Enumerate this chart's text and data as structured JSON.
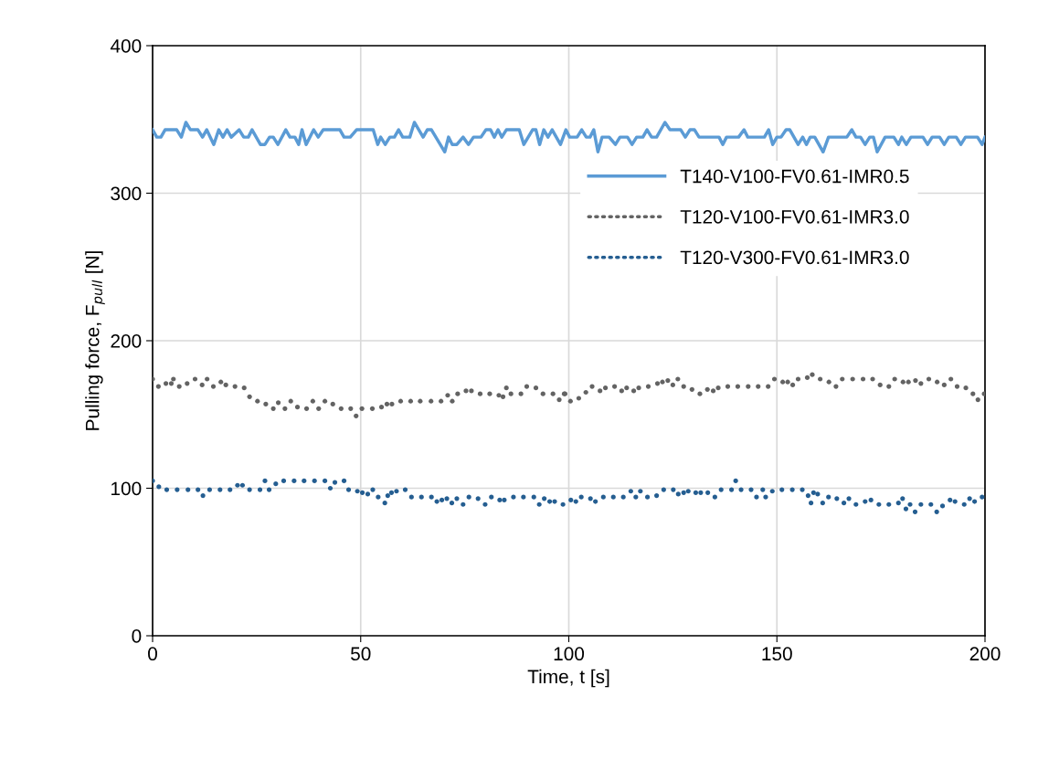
{
  "chart_data": {
    "type": "line",
    "xlabel": "Time, t [s]",
    "ylabel": "Pulling force, F$_{pull}$ [N]",
    "xlim": [
      0,
      200
    ],
    "xticks": [
      0,
      50,
      100,
      150,
      200
    ],
    "ylim": [
      0,
      400
    ],
    "yticks": [
      0,
      100,
      200,
      300,
      400
    ],
    "grid": true,
    "legend": "top right",
    "series": [
      {
        "name": "T140-V100-FV0.61-IMR0.5",
        "line_style": "solid",
        "color": "#5b9bd5",
        "x": [
          0,
          1,
          2,
          3,
          5.8,
          6.9,
          8,
          9.1,
          10.9,
          12,
          13,
          14.7,
          15.9,
          16.9,
          17.9,
          18.9,
          20.8,
          21.9,
          23,
          23.9,
          25.9,
          27,
          28.1,
          29,
          30.1,
          32,
          33,
          34.2,
          35.1,
          35.9,
          36.9,
          38.7,
          39.8,
          41,
          45,
          46,
          47.5,
          49,
          53,
          54.1,
          54.8,
          55.9,
          57,
          58.1,
          59.1,
          60.1,
          61.8,
          62.9,
          65,
          66,
          67,
          70.2,
          71.1,
          72,
          73.1,
          74.6,
          75.9,
          77.1,
          78.9,
          80.1,
          81.2,
          82.1,
          83,
          83.9,
          85,
          88.1,
          89.2,
          91.3,
          92.1,
          93,
          94,
          95,
          96,
          98,
          99.3,
          100.2,
          102,
          103.1,
          104.2,
          105.1,
          106,
          107,
          108,
          109.7,
          111.2,
          112.3,
          114.1,
          115.2,
          116.3,
          117.8,
          118.8,
          119.9,
          121.1,
          123.1,
          124.3,
          126.9,
          128,
          129.1,
          130.2,
          131.3,
          136.1,
          137,
          137.9,
          140.8,
          142.1,
          143,
          147,
          148,
          149,
          150,
          151,
          152.2,
          153.1,
          155.1,
          156.2,
          157.1,
          158,
          159.1,
          161.1,
          162.4,
          166.8,
          168,
          169,
          170.1,
          171.2,
          172.3,
          173.2,
          174.1,
          176,
          178.1,
          179.2,
          180,
          181.1,
          182.2,
          185.1,
          186.2,
          187.3,
          189.1,
          190.2,
          191.3,
          193.1,
          194.2,
          195.3,
          198.2,
          199.3,
          200
        ],
        "values": [
          343,
          338,
          338,
          343,
          343,
          338,
          348,
          343,
          343,
          338,
          343,
          333,
          343,
          338,
          343,
          338,
          343,
          338,
          338,
          343,
          333,
          333,
          338,
          338,
          333,
          343,
          338,
          338,
          333,
          343,
          333,
          343,
          338,
          343,
          343,
          338,
          338,
          343,
          343,
          333,
          338,
          333,
          338,
          338,
          343,
          338,
          338,
          348,
          338,
          343,
          343,
          328,
          338,
          333,
          333,
          338,
          333,
          338,
          338,
          343,
          343,
          338,
          343,
          338,
          343,
          343,
          333,
          343,
          343,
          333,
          343,
          338,
          343,
          333,
          343,
          338,
          338,
          343,
          338,
          338,
          343,
          328,
          338,
          338,
          333,
          338,
          338,
          333,
          338,
          338,
          343,
          338,
          338,
          348,
          343,
          343,
          338,
          343,
          343,
          338,
          338,
          333,
          338,
          338,
          343,
          338,
          338,
          343,
          333,
          338,
          338,
          343,
          343,
          333,
          338,
          333,
          338,
          338,
          328,
          338,
          338,
          343,
          338,
          338,
          333,
          338,
          338,
          328,
          338,
          338,
          333,
          338,
          333,
          338,
          338,
          333,
          338,
          338,
          333,
          338,
          338,
          333,
          338,
          338,
          333,
          338
        ]
      },
      {
        "name": "T120-V100-FV0.61-IMR3.0",
        "type": "scatter",
        "marker": "circle",
        "color": "#636363",
        "x": [
          0,
          1.4,
          3.2,
          4.5,
          5,
          6.4,
          8.3,
          10.2,
          11.9,
          13.1,
          14.6,
          16.4,
          17.6,
          19.8,
          22,
          23.3,
          25.2,
          27.2,
          29,
          30.2,
          31.8,
          33.2,
          34.8,
          37,
          38.5,
          39.9,
          41.4,
          43.3,
          45.3,
          47.6,
          48.9,
          50.3,
          52.8,
          55,
          56.3,
          57.5,
          59.6,
          62,
          64.3,
          66.9,
          69.3,
          70.9,
          72,
          73.3,
          75.3,
          76.6,
          78.7,
          81,
          83.2,
          84.2,
          85,
          86.1,
          88.5,
          89.9,
          92.1,
          93.8,
          96.2,
          97.7,
          98.9,
          99.1,
          100.4,
          102.4,
          104.1,
          105.6,
          107.5,
          108.8,
          111,
          112.7,
          113.9,
          115.6,
          116.8,
          119.1,
          121.3,
          122.5,
          123.8,
          125,
          126.2,
          127.6,
          129.6,
          131.5,
          133.3,
          134.7,
          135.9,
          138.2,
          140.6,
          143.1,
          145.5,
          147.9,
          149.4,
          151.4,
          152.6,
          153.8,
          155.1,
          157.3,
          158.5,
          160.4,
          162.5,
          164.2,
          165.7,
          168.2,
          170.7,
          173,
          174.8,
          176.9,
          178.3,
          180.3,
          181.6,
          183.3,
          184.6,
          186.5,
          188.5,
          190.2,
          191.8,
          193.3,
          195.4,
          197.1,
          198.3,
          199.8
        ],
        "values": [
          174,
          169,
          171,
          171,
          174,
          169,
          171,
          174,
          170,
          174,
          169,
          172,
          170,
          169,
          168,
          162,
          159,
          157,
          154,
          158,
          154,
          159,
          155,
          154,
          159,
          154,
          159,
          157,
          154,
          154,
          149,
          154,
          154,
          155,
          157,
          157,
          159,
          159,
          159,
          159,
          159,
          163,
          159,
          164,
          166,
          166,
          164,
          164,
          163,
          162,
          168,
          164,
          164,
          169,
          168,
          164,
          164,
          160,
          164,
          164,
          159,
          161,
          165,
          169,
          166,
          168,
          169,
          166,
          168,
          166,
          168,
          169,
          171,
          172,
          173,
          170,
          174,
          169,
          167,
          164,
          167,
          166,
          168,
          169,
          169,
          169,
          169,
          169,
          174,
          172,
          172,
          170,
          174,
          175,
          177,
          174,
          172,
          169,
          174,
          174,
          174,
          174,
          170,
          169,
          174,
          172,
          172,
          173,
          171,
          174,
          172,
          170,
          174,
          169,
          168,
          164,
          160,
          164
        ]
      },
      {
        "name": "T120-V300-FV0.61-IMR3.0",
        "type": "scatter",
        "marker": "circle",
        "color": "#255e91",
        "x": [
          0,
          1.5,
          3.4,
          5.9,
          8.5,
          10.9,
          12.1,
          13.7,
          16.2,
          18.6,
          20.4,
          21.6,
          23.3,
          25.8,
          27,
          28,
          29.6,
          31.5,
          34,
          36.4,
          38.9,
          41.4,
          42.7,
          43.8,
          46,
          47.1,
          49.2,
          50.4,
          51.7,
          52.9,
          54.2,
          55.8,
          56.5,
          57.4,
          58.6,
          60.7,
          62.2,
          64.6,
          67,
          68.3,
          69.5,
          70.7,
          71.9,
          73.1,
          74.6,
          76,
          78.2,
          79.9,
          81.4,
          83.4,
          84.5,
          86.7,
          89.1,
          91.6,
          92.9,
          94.1,
          95.4,
          96.6,
          98.6,
          100.5,
          101.7,
          103,
          105.2,
          106.4,
          108.3,
          110.7,
          113.1,
          114.9,
          116.1,
          117.2,
          118.9,
          121.1,
          122.8,
          125.1,
          126.3,
          127.6,
          128.7,
          130.5,
          131.7,
          133.4,
          135.1,
          136.6,
          139.1,
          140.1,
          141.4,
          143.8,
          145.1,
          146.6,
          147.3,
          148.9,
          151.2,
          153.7,
          156.1,
          157.5,
          158.2,
          158.8,
          159.8,
          161,
          162.4,
          164.4,
          166.1,
          167.3,
          169,
          171.2,
          172.6,
          174.5,
          176.9,
          179.2,
          180.2,
          181,
          182,
          183.2,
          184.6,
          187,
          188.4,
          189.8,
          191.6,
          192.8,
          195,
          196.3,
          197.5,
          199.3
        ],
        "values": [
          105,
          101,
          99,
          99,
          99,
          99,
          95,
          99,
          99,
          99,
          102,
          102,
          99,
          99,
          105,
          99,
          103,
          105,
          105,
          105,
          105,
          105,
          100,
          104,
          105,
          99,
          98,
          97,
          96,
          99,
          94,
          90,
          95,
          97,
          98,
          99,
          94,
          94,
          94,
          91,
          92,
          93,
          90,
          93,
          89,
          94,
          93,
          89,
          94,
          92,
          92,
          94,
          94,
          94,
          89,
          93,
          91,
          91,
          89,
          92,
          91,
          94,
          93,
          91,
          94,
          94,
          94,
          98,
          94,
          98,
          94,
          95,
          99,
          99,
          96,
          97,
          98,
          97,
          97,
          97,
          94,
          99,
          99,
          105,
          99,
          99,
          94,
          99,
          94,
          98,
          99,
          99,
          99,
          95,
          90,
          97,
          96,
          90,
          94,
          93,
          90,
          93,
          89,
          91,
          92,
          89,
          89,
          90,
          93,
          86,
          89,
          84,
          89,
          89,
          84,
          88,
          92,
          91,
          89,
          93,
          91,
          94
        ]
      }
    ]
  }
}
